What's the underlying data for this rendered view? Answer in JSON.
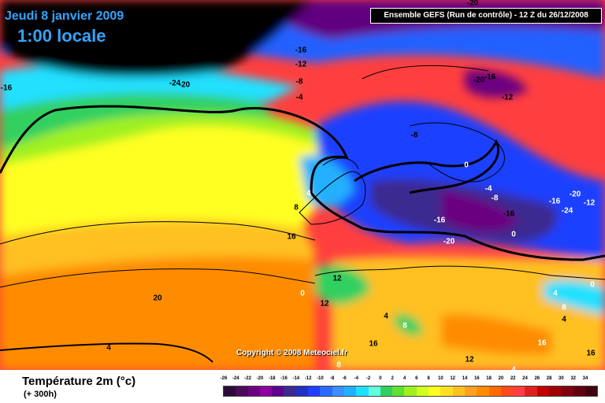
{
  "header": {
    "date": "Jeudi 8 janvier 2009",
    "time": "1:00 locale",
    "run_info": "Ensemble GEFS (Run de contrôle)  - 12 Z du 26/12/2008"
  },
  "copyright": "Copyright © 2008 Meteociel.fr",
  "footer": {
    "variable": "Température 2m (°c)",
    "lead_time": "(+ 300h)"
  },
  "colors": {
    "background": "#000000",
    "title_blue": "#34a4ff",
    "warm_red": "#ff3f3f",
    "orange": "#ff8c00",
    "yellow": "#ffff20",
    "green": "#30d060",
    "cyan": "#20e0ff",
    "blue": "#2060ff",
    "purple": "#600080"
  },
  "contour_labels": [
    {
      "text": "-20",
      "color": "black"
    },
    {
      "text": "-16",
      "color": "black"
    },
    {
      "text": "-12",
      "color": "black"
    },
    {
      "text": "-8",
      "color": "black"
    },
    {
      "text": "-4",
      "color": "black"
    },
    {
      "text": "-24",
      "color": "black"
    },
    {
      "text": "-20",
      "color": "black"
    },
    {
      "text": "-16",
      "color": "black"
    },
    {
      "text": "-20",
      "color": "black"
    },
    {
      "text": "-16",
      "color": "black"
    },
    {
      "text": "-12",
      "color": "black"
    },
    {
      "text": "-8",
      "color": "black"
    },
    {
      "text": "0",
      "color": "white"
    },
    {
      "text": "-4",
      "color": "white"
    },
    {
      "text": "-8",
      "color": "white"
    },
    {
      "text": "-20",
      "color": "white"
    },
    {
      "text": "-16",
      "color": "white"
    },
    {
      "text": "-24",
      "color": "white"
    },
    {
      "text": "-12",
      "color": "white"
    },
    {
      "text": "-16",
      "color": "black"
    },
    {
      "text": "-16",
      "color": "white"
    },
    {
      "text": "-20",
      "color": "white"
    },
    {
      "text": "0",
      "color": "white"
    },
    {
      "text": "4",
      "color": "white"
    },
    {
      "text": "8",
      "color": "black"
    },
    {
      "text": "16",
      "color": "black"
    },
    {
      "text": "20",
      "color": "black"
    },
    {
      "text": "4",
      "color": "black"
    },
    {
      "text": "12",
      "color": "black"
    },
    {
      "text": "0",
      "color": "white"
    },
    {
      "text": "12",
      "color": "black"
    },
    {
      "text": "4",
      "color": "black"
    },
    {
      "text": "8",
      "color": "white"
    },
    {
      "text": "16",
      "color": "black"
    },
    {
      "text": "16",
      "color": "white"
    },
    {
      "text": "12",
      "color": "black"
    },
    {
      "text": "8",
      "color": "white"
    },
    {
      "text": "4",
      "color": "white"
    },
    {
      "text": "0",
      "color": "white"
    },
    {
      "text": "4",
      "color": "white"
    },
    {
      "text": "8",
      "color": "white"
    },
    {
      "text": "4",
      "color": "black"
    },
    {
      "text": "16",
      "color": "black"
    }
  ],
  "scale": {
    "labels": [
      "-26",
      "-24",
      "-22",
      "-20",
      "-18",
      "-16",
      "-14",
      "-12",
      "-10",
      "-8",
      "-6",
      "-4",
      "-2",
      "0",
      "2",
      "4",
      "6",
      "8",
      "10",
      "12",
      "14",
      "16",
      "18",
      "20",
      "22",
      "24",
      "26",
      "28",
      "30",
      "32",
      "34"
    ],
    "colors": [
      "#2a0a3a",
      "#4a0a5a",
      "#6a0080",
      "#8a00a0",
      "#600090",
      "#3a2a90",
      "#2030c0",
      "#1f3fff",
      "#2a6aff",
      "#3a90ff",
      "#20b0ff",
      "#20e0ff",
      "#60ffe0",
      "#30d060",
      "#60e030",
      "#a0f020",
      "#d0ff20",
      "#ffff20",
      "#ffe020",
      "#ffc020",
      "#ffa020",
      "#ff8c00",
      "#ff6a00",
      "#ff4a20",
      "#ff3f3f",
      "#e02020",
      "#c00000",
      "#a00000",
      "#800010",
      "#600010",
      "#400010"
    ]
  }
}
